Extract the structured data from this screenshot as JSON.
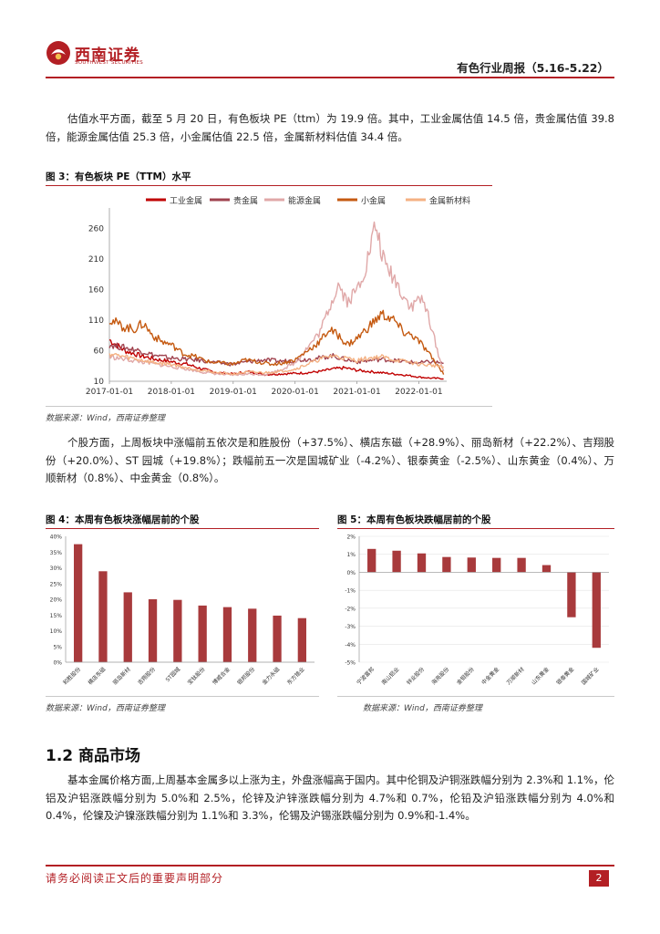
{
  "header": {
    "logo_cn": "西南证券",
    "logo_en": "SOUTHWEST SECURITIES",
    "report_title": "有色行业周报（5.16-5.22）"
  },
  "paragraphs": {
    "valuation": "估值水平方面，截至 5 月 20 日，有色板块 PE（ttm）为 19.9 倍。其中，工业金属估值 14.5 倍，贵金属估值 39.8 倍，能源金属估值 25.3 倍，小金属估值 22.5 倍，金属新材料估值 34.4 倍。",
    "stocks": "个股方面，上周板块中涨幅前五依次是和胜股份（+37.5%）、横店东磁（+28.9%）、丽岛新材（+22.2%）、吉翔股份（+20.0%）、ST 园城（+19.8%）；跌幅前五一次是国城矿业（-4.2%）、银泰黄金（-2.5%）、山东黄金（0.4%）、万顺新材（0.8%）、中金黄金（0.8%）。",
    "commodity": "基本金属价格方面,上周基本金属多以上涨为主，外盘涨幅高于国内。其中伦铜及沪铜涨跌幅分别为 2.3%和 1.1%，伦铝及沪铝涨跌幅分别为 5.0%和 2.5%，伦锌及沪锌涨跌幅分别为 4.7%和 0.7%，伦铅及沪铅涨跌幅分别为 4.0%和 0.4%，伦镍及沪镍涨跌幅分别为 1.1%和 3.3%，伦锡及沪锡涨跌幅分别为 0.9%和-1.4%。"
  },
  "figures": {
    "fig3_title": "图 3：有色板块 PE（TTM）水平",
    "fig4_title": "图 4：本周有色板块涨幅居前的个股",
    "fig5_title": "图 5：本周有色板块跌幅居前的个股",
    "source": "数据来源：Wind，西南证券整理"
  },
  "section": {
    "title": "1.2 商品市场"
  },
  "footer": {
    "disclaimer": "请务必阅读正文后的重要声明部分",
    "page": "2"
  },
  "colors": {
    "brand": "#b31f24",
    "bar": "#a83a3c",
    "industrial": "#c00000",
    "precious": "#a0434f",
    "energy": "#e0a8a8",
    "minor": "#c55a11",
    "newmat": "#f4b183"
  },
  "chart_data": [
    {
      "type": "line",
      "title": "有色板块 PE（TTM）水平",
      "x": [
        "2017-01-01",
        "2018-01-01",
        "2019-01-01",
        "2020-01-01",
        "2021-01-01",
        "2022-01-01"
      ],
      "ylim": [
        10,
        285
      ],
      "yticks": [
        10,
        60,
        110,
        160,
        210,
        260
      ],
      "series": [
        {
          "name": "工业金属",
          "key": "industrial",
          "points": [
            [
              2017.0,
              78
            ],
            [
              2017.25,
              60
            ],
            [
              2017.5,
              52
            ],
            [
              2017.75,
              46
            ],
            [
              2018.0,
              42
            ],
            [
              2018.25,
              38
            ],
            [
              2018.5,
              30
            ],
            [
              2018.75,
              24
            ],
            [
              2019.0,
              22
            ],
            [
              2019.25,
              26
            ],
            [
              2019.5,
              21
            ],
            [
              2019.75,
              22
            ],
            [
              2020.0,
              23
            ],
            [
              2020.2,
              24
            ],
            [
              2020.4,
              26
            ],
            [
              2020.6,
              30
            ],
            [
              2020.8,
              32
            ],
            [
              2021.0,
              28
            ],
            [
              2021.2,
              26
            ],
            [
              2021.4,
              24
            ],
            [
              2021.6,
              22
            ],
            [
              2021.8,
              20
            ],
            [
              2022.0,
              17
            ],
            [
              2022.2,
              15
            ],
            [
              2022.4,
              14.5
            ]
          ]
        },
        {
          "name": "贵金属",
          "key": "precious",
          "points": [
            [
              2017.0,
              70
            ],
            [
              2017.25,
              65
            ],
            [
              2017.5,
              60
            ],
            [
              2017.75,
              52
            ],
            [
              2018.0,
              48
            ],
            [
              2018.25,
              46
            ],
            [
              2018.5,
              44
            ],
            [
              2018.75,
              40
            ],
            [
              2019.0,
              38
            ],
            [
              2019.25,
              42
            ],
            [
              2019.5,
              45
            ],
            [
              2019.75,
              43
            ],
            [
              2020.0,
              44
            ],
            [
              2020.2,
              46
            ],
            [
              2020.4,
              48
            ],
            [
              2020.6,
              52
            ],
            [
              2020.8,
              46
            ],
            [
              2021.0,
              42
            ],
            [
              2021.2,
              44
            ],
            [
              2021.4,
              46
            ],
            [
              2021.6,
              44
            ],
            [
              2021.8,
              42
            ],
            [
              2022.0,
              40
            ],
            [
              2022.2,
              42
            ],
            [
              2022.4,
              39.8
            ]
          ]
        },
        {
          "name": "能源金属",
          "key": "energy",
          "points": [
            [
              2017.0,
              50
            ],
            [
              2017.25,
              46
            ],
            [
              2017.5,
              42
            ],
            [
              2017.75,
              38
            ],
            [
              2018.0,
              34
            ],
            [
              2018.25,
              30
            ],
            [
              2018.5,
              25
            ],
            [
              2018.75,
              22
            ],
            [
              2019.0,
              20
            ],
            [
              2019.25,
              22
            ],
            [
              2019.5,
              21
            ],
            [
              2019.75,
              28
            ],
            [
              2020.0,
              40
            ],
            [
              2020.2,
              65
            ],
            [
              2020.4,
              90
            ],
            [
              2020.55,
              130
            ],
            [
              2020.7,
              170
            ],
            [
              2020.85,
              140
            ],
            [
              2021.0,
              160
            ],
            [
              2021.15,
              200
            ],
            [
              2021.3,
              265
            ],
            [
              2021.45,
              200
            ],
            [
              2021.6,
              180
            ],
            [
              2021.75,
              150
            ],
            [
              2021.9,
              130
            ],
            [
              2022.0,
              150
            ],
            [
              2022.15,
              120
            ],
            [
              2022.3,
              60
            ],
            [
              2022.4,
              25.3
            ]
          ]
        },
        {
          "name": "小金属",
          "key": "minor",
          "points": [
            [
              2017.0,
              112
            ],
            [
              2017.2,
              100
            ],
            [
              2017.4,
              95
            ],
            [
              2017.55,
              105
            ],
            [
              2017.7,
              85
            ],
            [
              2017.85,
              75
            ],
            [
              2018.0,
              70
            ],
            [
              2018.2,
              55
            ],
            [
              2018.4,
              50
            ],
            [
              2018.6,
              42
            ],
            [
              2018.8,
              40
            ],
            [
              2019.0,
              38
            ],
            [
              2019.2,
              45
            ],
            [
              2019.4,
              42
            ],
            [
              2019.6,
              38
            ],
            [
              2019.8,
              40
            ],
            [
              2020.0,
              45
            ],
            [
              2020.2,
              60
            ],
            [
              2020.4,
              75
            ],
            [
              2020.55,
              95
            ],
            [
              2020.7,
              85
            ],
            [
              2020.85,
              70
            ],
            [
              2021.0,
              80
            ],
            [
              2021.2,
              100
            ],
            [
              2021.4,
              120
            ],
            [
              2021.6,
              110
            ],
            [
              2021.75,
              90
            ],
            [
              2021.9,
              85
            ],
            [
              2022.05,
              70
            ],
            [
              2022.2,
              50
            ],
            [
              2022.4,
              22.5
            ]
          ]
        },
        {
          "name": "金属新材料",
          "key": "newmat",
          "points": [
            [
              2017.0,
              55
            ],
            [
              2017.25,
              50
            ],
            [
              2017.5,
              45
            ],
            [
              2017.75,
              40
            ],
            [
              2018.0,
              38
            ],
            [
              2018.25,
              32
            ],
            [
              2018.5,
              28
            ],
            [
              2018.75,
              24
            ],
            [
              2019.0,
              22
            ],
            [
              2019.25,
              25
            ],
            [
              2019.5,
              24
            ],
            [
              2019.75,
              26
            ],
            [
              2020.0,
              30
            ],
            [
              2020.2,
              38
            ],
            [
              2020.4,
              46
            ],
            [
              2020.6,
              52
            ],
            [
              2020.8,
              48
            ],
            [
              2021.0,
              44
            ],
            [
              2021.2,
              48
            ],
            [
              2021.4,
              50
            ],
            [
              2021.6,
              45
            ],
            [
              2021.8,
              42
            ],
            [
              2022.0,
              38
            ],
            [
              2022.2,
              36
            ],
            [
              2022.4,
              34.4
            ]
          ]
        }
      ]
    },
    {
      "type": "bar",
      "title": "本周有色板块涨幅居前的个股",
      "categories": [
        "和胜股份",
        "横店东磁",
        "丽岛新材",
        "吉翔股份",
        "ST园城",
        "宝钛股份",
        "博威合金",
        "银邦股份",
        "金力永磁",
        "东方锆业"
      ],
      "values": [
        37.5,
        28.9,
        22.2,
        20.0,
        19.8,
        18.0,
        17.5,
        17.0,
        14.8,
        14.0
      ],
      "ylim": [
        0,
        40
      ],
      "yticks": [
        "0%",
        "5%",
        "10%",
        "15%",
        "20%",
        "25%",
        "30%",
        "35%",
        "40%"
      ]
    },
    {
      "type": "bar",
      "title": "本周有色板块跌幅居前的个股",
      "categories": [
        "宁波富邦",
        "南山铝业",
        "锌业股份",
        "海亮股份",
        "金钼股份",
        "中金黄金",
        "万顺新材",
        "山东黄金",
        "银泰黄金",
        "国城矿业"
      ],
      "values": [
        1.3,
        1.2,
        1.05,
        0.85,
        0.82,
        0.8,
        0.8,
        0.4,
        -2.5,
        -4.2
      ],
      "ylim": [
        -5,
        2
      ],
      "yticks": [
        "-5%",
        "-4%",
        "-3%",
        "-2%",
        "-1%",
        "0%",
        "1%",
        "2%"
      ]
    }
  ]
}
